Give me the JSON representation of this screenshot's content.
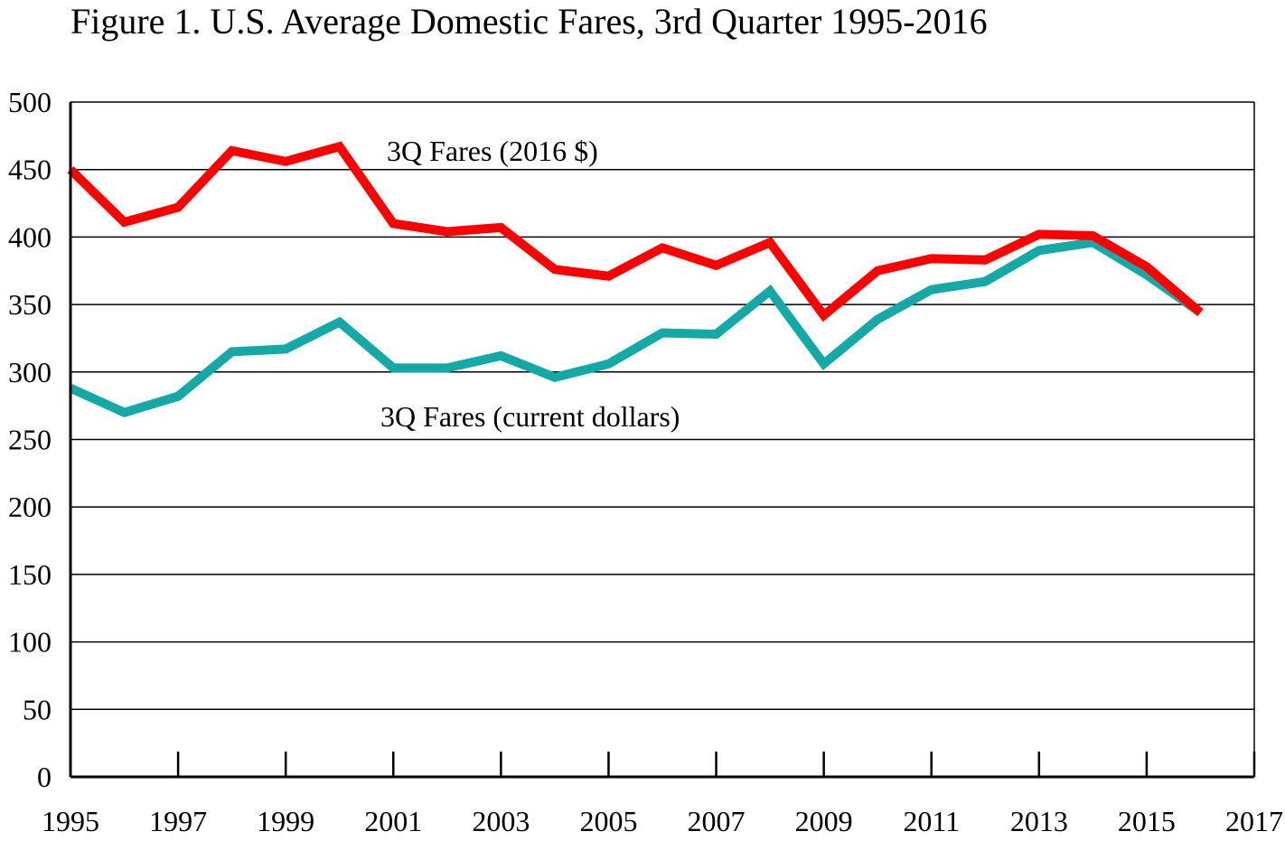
{
  "chart_data": {
    "type": "line",
    "title": "Figure 1. U.S. Average Domestic Fares, 3rd Quarter 1995-2016",
    "xlabel": "",
    "ylabel": "",
    "xlim": [
      1995,
      2017
    ],
    "ylim": [
      0,
      500
    ],
    "x_ticks": [
      1995,
      1997,
      1999,
      2001,
      2003,
      2005,
      2007,
      2009,
      2011,
      2013,
      2015,
      2017
    ],
    "y_ticks": [
      0,
      50,
      100,
      150,
      200,
      250,
      300,
      350,
      400,
      450,
      500
    ],
    "grid": "horizontal",
    "legend": "inline labels",
    "x": [
      1995,
      1996,
      1997,
      1998,
      1999,
      2000,
      2001,
      2002,
      2003,
      2004,
      2005,
      2006,
      2007,
      2008,
      2009,
      2010,
      2011,
      2012,
      2013,
      2014,
      2015,
      2016
    ],
    "series": [
      {
        "name": "3Q Fares (2016 $)",
        "color": "#ff0000",
        "values": [
          450,
          411,
          422,
          464,
          456,
          467,
          410,
          404,
          407,
          376,
          371,
          392,
          379,
          396,
          342,
          375,
          384,
          383,
          402,
          401,
          378,
          344
        ]
      },
      {
        "name": "3Q Fares (current dollars)",
        "color": "#14a8a6",
        "values": [
          288,
          270,
          282,
          315,
          317,
          337,
          303,
          303,
          312,
          296,
          306,
          329,
          328,
          360,
          306,
          339,
          361,
          367,
          390,
          396,
          372,
          344
        ]
      }
    ]
  }
}
